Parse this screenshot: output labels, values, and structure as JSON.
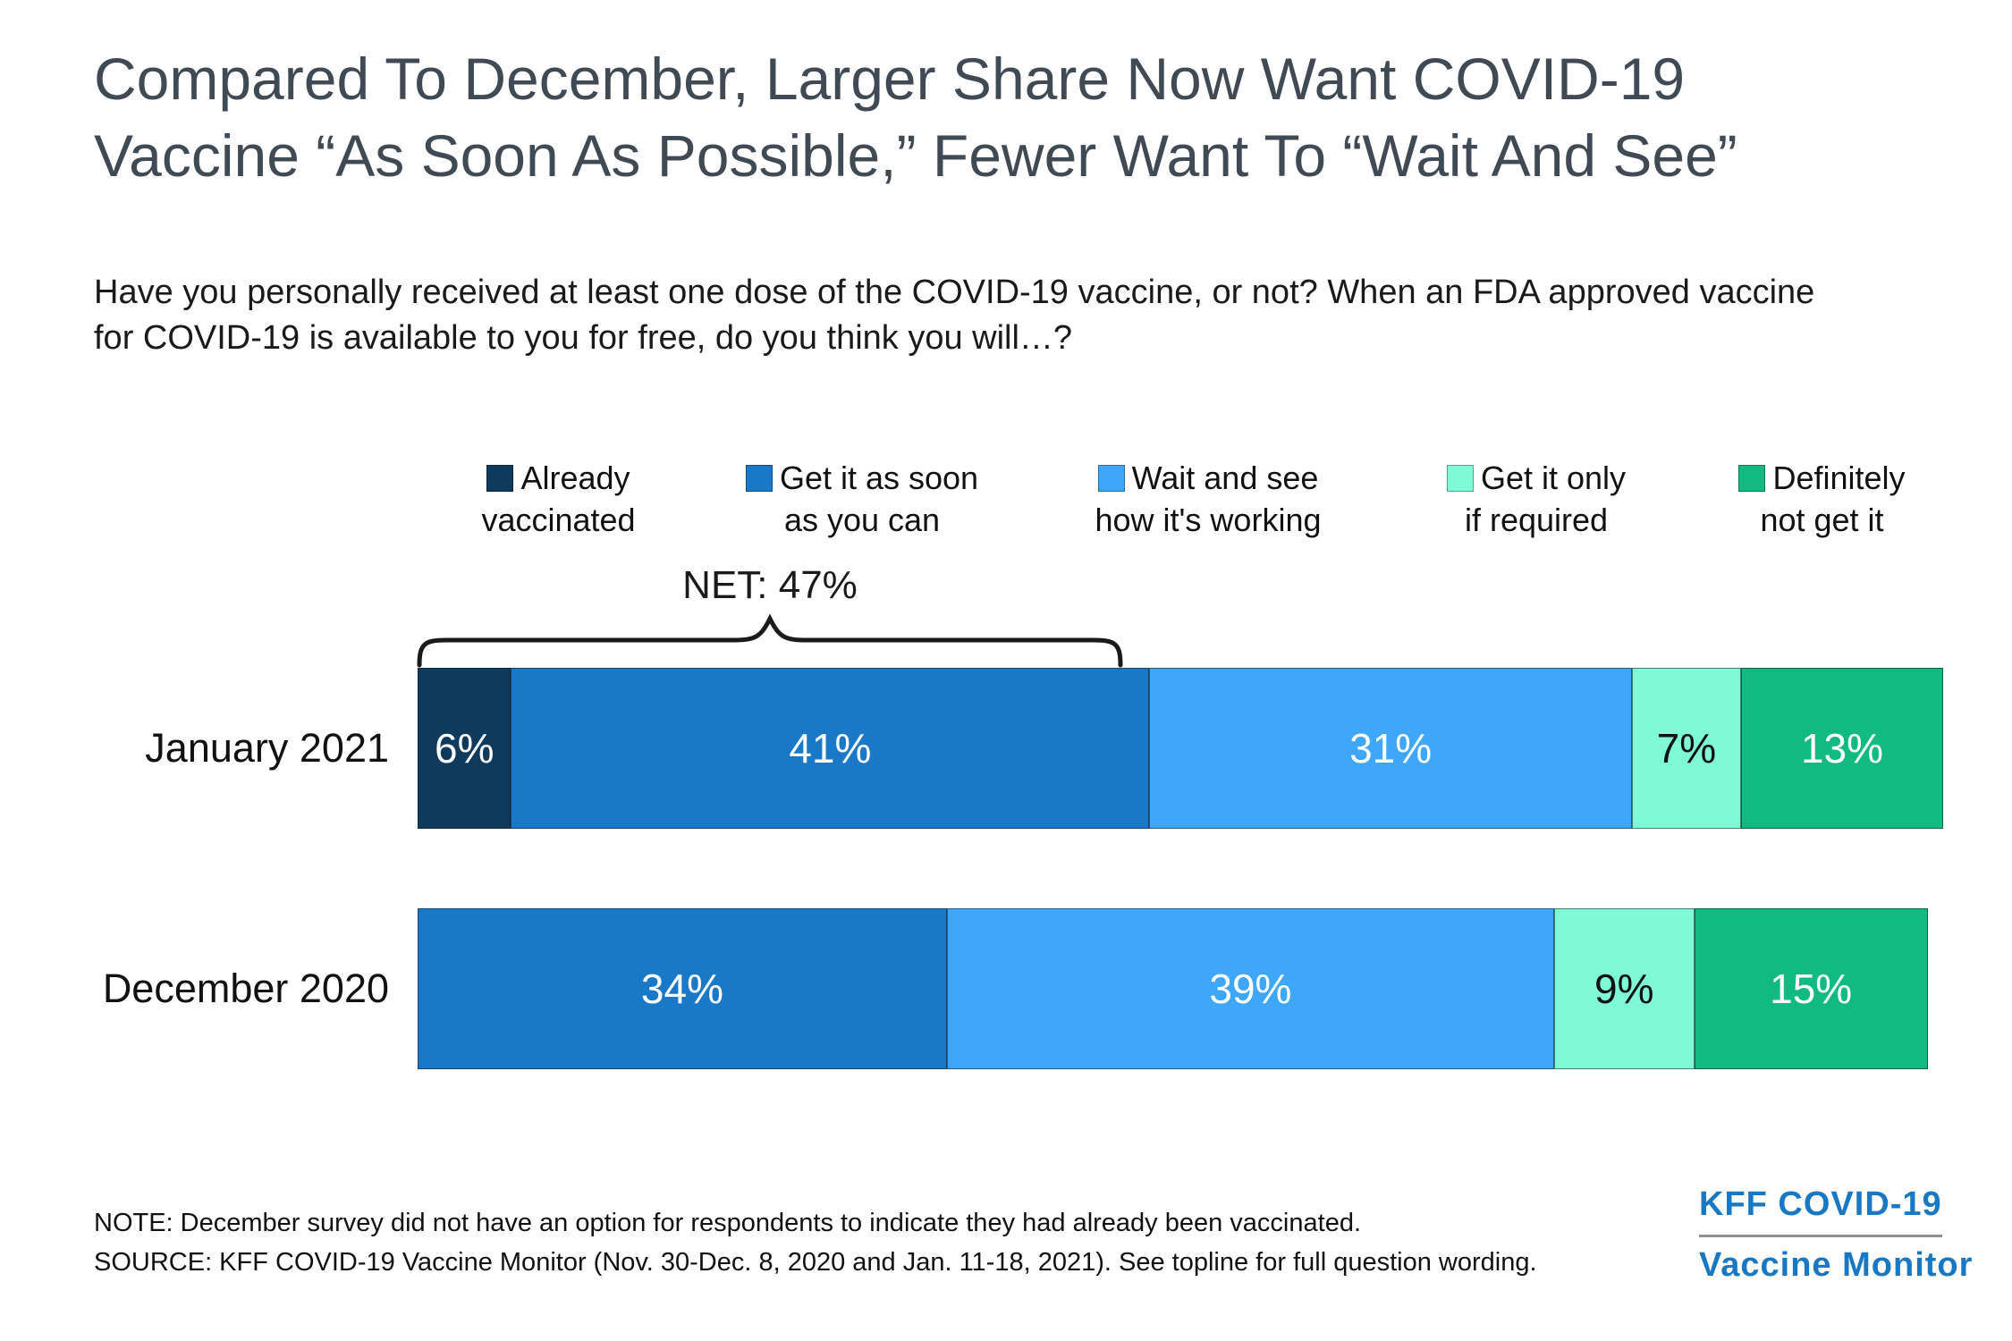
{
  "page": {
    "title": "Compared To December, Larger Share Now Want COVID-19 Vaccine “As Soon As Possible,” Fewer Want To “Wait And See”",
    "question": "Have you personally received at least one dose of the COVID-19 vaccine, or not? When an FDA approved vaccine for COVID-19 is available to you for free, do you think you will…?",
    "note": "NOTE: December survey did not have an option for respondents to indicate they had already been vaccinated.",
    "source": "SOURCE: KFF COVID-19 Vaccine Monitor (Nov. 30-Dec. 8, 2020 and Jan. 11-18, 2021). See topline for full question wording.",
    "logo_line1": "KFF COVID-19",
    "logo_line2": "Vaccine Monitor",
    "logo_color": "#1878c4",
    "title_color": "#404a54"
  },
  "chart_data": {
    "type": "bar",
    "orientation": "horizontal_stacked",
    "value_suffix": "%",
    "xlim": [
      0,
      100
    ],
    "categories": [
      "January 2021",
      "December 2020"
    ],
    "series": [
      {
        "name": "Already vaccinated",
        "color": "#0e3a5d",
        "label_color": "#ffffff",
        "values": [
          6,
          null
        ]
      },
      {
        "name": "Get it as soon as you can",
        "color": "#1a78c8",
        "label_color": "#ffffff",
        "values": [
          41,
          34
        ]
      },
      {
        "name": "Wait and see how it's working",
        "color": "#3ea7f9",
        "label_color": "#ffffff",
        "values": [
          31,
          39
        ]
      },
      {
        "name": "Get it only if required",
        "color": "#7efad6",
        "label_color": "#111111",
        "values": [
          7,
          9
        ]
      },
      {
        "name": "Definitely not get it",
        "color": "#10ba80",
        "label_color": "#ffffff",
        "values": [
          13,
          15
        ]
      }
    ],
    "annotation": {
      "label": "NET: 47%",
      "applies_to": "January 2021",
      "span_series": [
        "Already vaccinated",
        "Get it as soon as you can"
      ],
      "span_total": 47
    },
    "legend_position": "top",
    "grid": false
  }
}
